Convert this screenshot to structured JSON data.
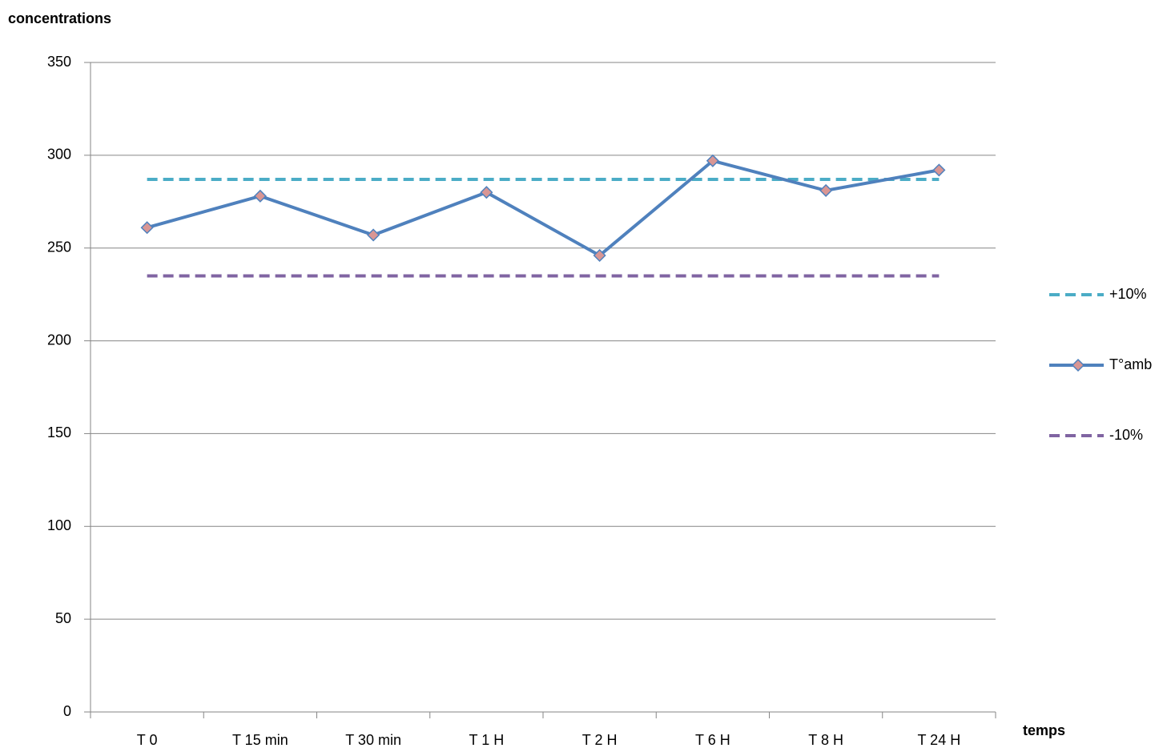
{
  "chart_data": {
    "type": "line",
    "y_label": "concentrations",
    "x_label": "temps",
    "categories": [
      "T 0",
      "T 15 min",
      "T 30 min",
      "T 1 H",
      "T 2 H",
      "T 6 H",
      "T 8 H",
      "T 24 H"
    ],
    "series": [
      {
        "name": "+10%",
        "color": "#4bacc6",
        "dashed": true,
        "values": [
          287,
          287,
          287,
          287,
          287,
          287,
          287,
          287
        ]
      },
      {
        "name": "T°amb",
        "color": "#4f81bd",
        "dashed": false,
        "marker": "diamond",
        "marker_color": "#d99694",
        "values": [
          261,
          278,
          257,
          280,
          246,
          297,
          281,
          292
        ]
      },
      {
        "name": "-10%",
        "color": "#8064a2",
        "dashed": true,
        "values": [
          235,
          235,
          235,
          235,
          235,
          235,
          235,
          235
        ]
      }
    ],
    "ylim": [
      0,
      350
    ],
    "yticks": [
      0,
      50,
      100,
      150,
      200,
      250,
      300,
      350
    ],
    "grid": true,
    "legend": "right"
  }
}
